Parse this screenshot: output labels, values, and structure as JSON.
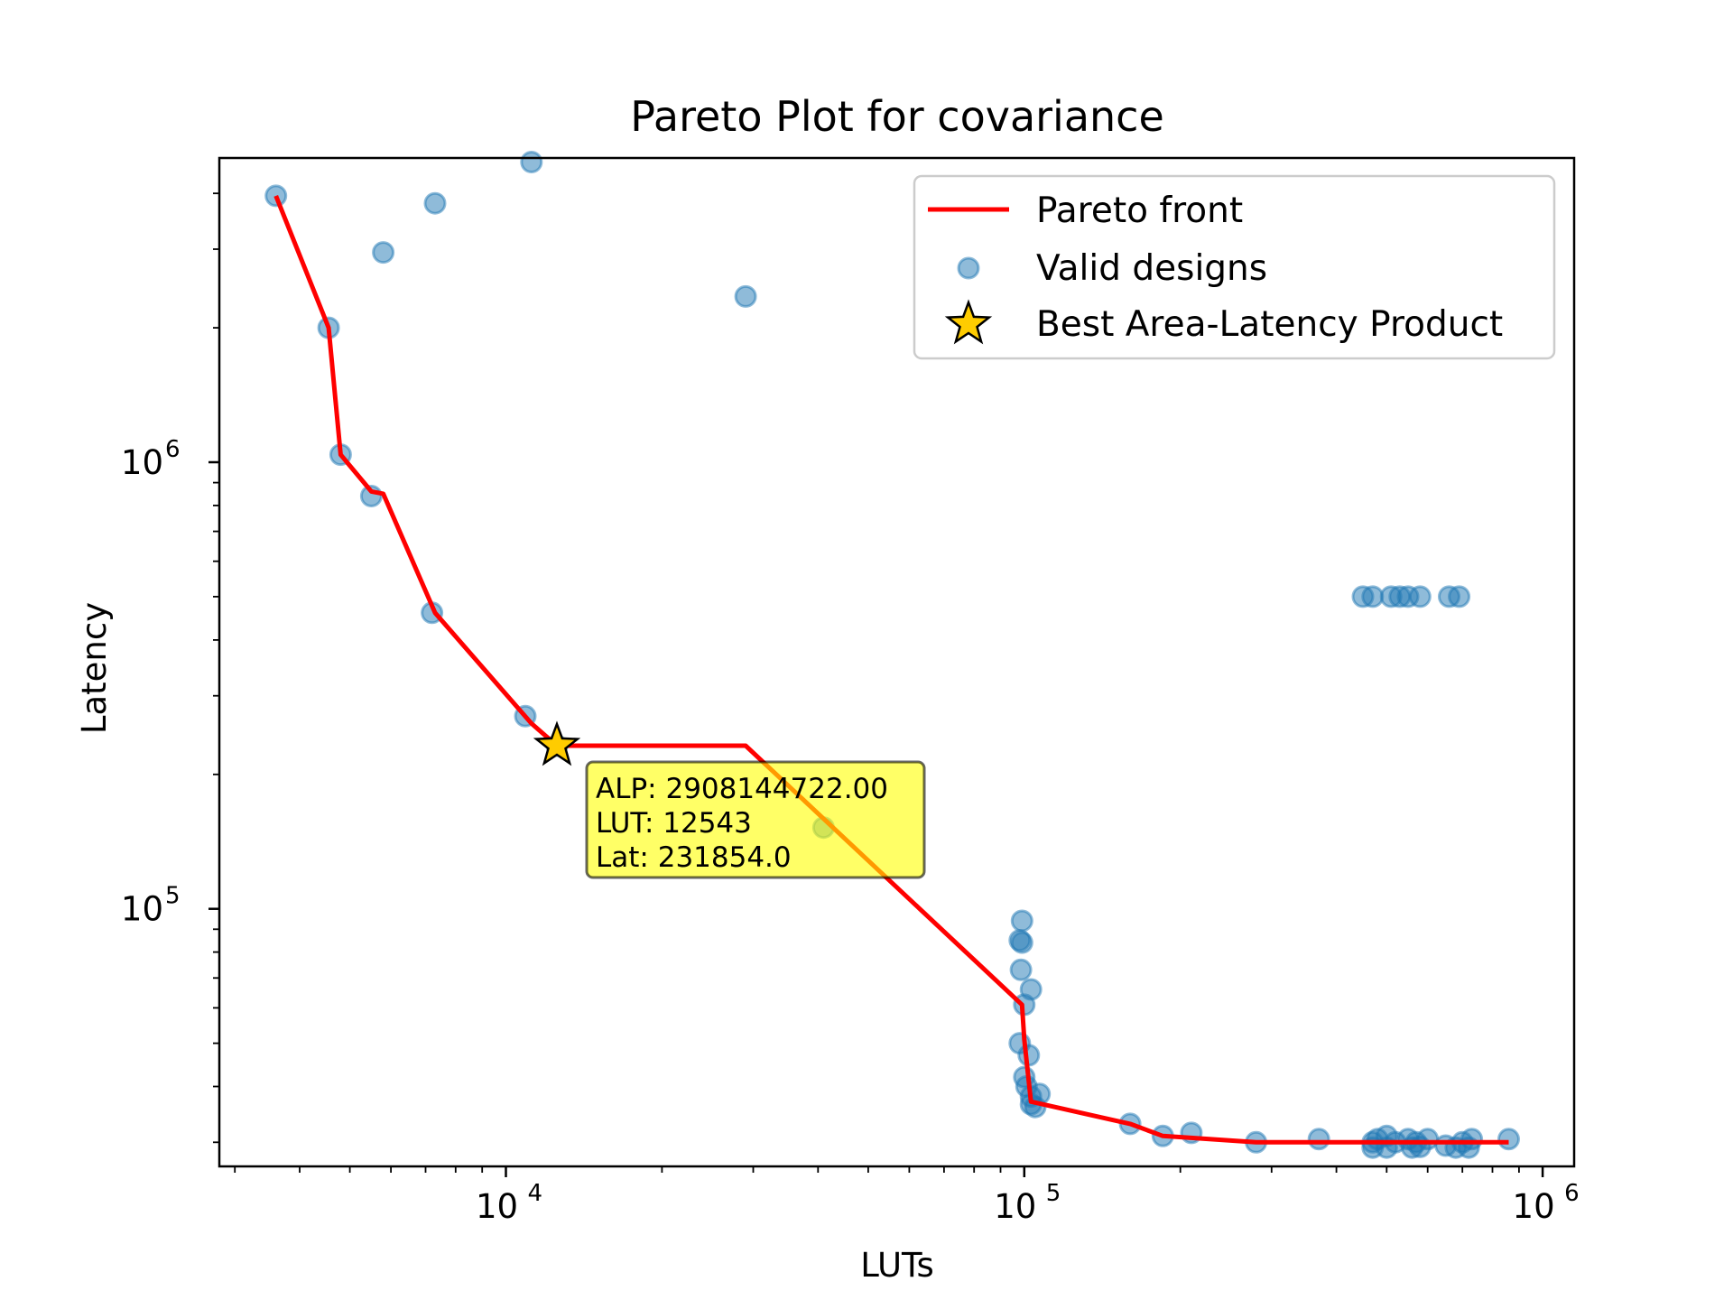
{
  "chart_data": {
    "type": "scatter",
    "title": "Pareto Plot for covariance",
    "xlabel": "LUTs",
    "ylabel": "Latency",
    "xscale": "log",
    "yscale": "log",
    "xlim": [
      2800,
      1150000
    ],
    "ylim": [
      26500,
      4800000
    ],
    "x_ticks": [
      {
        "value": 10000,
        "base": "10",
        "exp": "4"
      },
      {
        "value": 100000,
        "base": "10",
        "exp": "5"
      },
      {
        "value": 1000000,
        "base": "10",
        "exp": "6"
      }
    ],
    "y_ticks": [
      {
        "value": 100000,
        "base": "10",
        "exp": "5"
      },
      {
        "value": 1000000,
        "base": "10",
        "exp": "6"
      }
    ],
    "grid": false,
    "legend": {
      "position": "top-right",
      "entries": [
        {
          "label": "Pareto front",
          "kind": "line",
          "color": "#ff0000"
        },
        {
          "label": "Valid designs",
          "kind": "marker",
          "color": "#1f77b4"
        },
        {
          "label": "Best Area-Latency Product",
          "kind": "star",
          "color": "#ffcc00"
        }
      ]
    },
    "series": [
      {
        "name": "Valid designs",
        "kind": "scatter",
        "color": "#1f77b4",
        "opacity": 0.5,
        "points": [
          [
            3600,
            3950000
          ],
          [
            4550,
            2000000
          ],
          [
            4800,
            1040000
          ],
          [
            5500,
            840000
          ],
          [
            5800,
            2950000
          ],
          [
            7300,
            3800000
          ],
          [
            7200,
            460000
          ],
          [
            10900,
            270000
          ],
          [
            11200,
            4700000
          ],
          [
            12543,
            231854
          ],
          [
            29000,
            2350000
          ],
          [
            41000,
            152000
          ],
          [
            99000,
            94000
          ],
          [
            98000,
            85000
          ],
          [
            99000,
            84000
          ],
          [
            98500,
            73000
          ],
          [
            103000,
            66000
          ],
          [
            100000,
            61000
          ],
          [
            98000,
            50000
          ],
          [
            102000,
            47000
          ],
          [
            100000,
            42000
          ],
          [
            101000,
            40000
          ],
          [
            103000,
            38000
          ],
          [
            107000,
            38500
          ],
          [
            103000,
            36500
          ],
          [
            105000,
            36000
          ],
          [
            160000,
            33000
          ],
          [
            185000,
            31000
          ],
          [
            210000,
            31500
          ],
          [
            280000,
            30000
          ],
          [
            370000,
            30500
          ],
          [
            470000,
            30000
          ],
          [
            480000,
            30500
          ],
          [
            500000,
            31000
          ],
          [
            520000,
            30000
          ],
          [
            550000,
            30500
          ],
          [
            570000,
            30000
          ],
          [
            600000,
            30500
          ],
          [
            650000,
            29500
          ],
          [
            700000,
            30000
          ],
          [
            730000,
            30500
          ],
          [
            860000,
            30500
          ],
          [
            470000,
            29200
          ],
          [
            500000,
            29200
          ],
          [
            560000,
            29200
          ],
          [
            580000,
            29300
          ],
          [
            680000,
            29200
          ],
          [
            720000,
            29200
          ],
          [
            450000,
            500000
          ],
          [
            470000,
            500000
          ],
          [
            510000,
            500000
          ],
          [
            530000,
            500000
          ],
          [
            550000,
            500000
          ],
          [
            580000,
            500000
          ],
          [
            660000,
            500000
          ],
          [
            690000,
            500000
          ]
        ]
      },
      {
        "name": "Pareto front",
        "kind": "line",
        "color": "#ff0000",
        "points": [
          [
            3600,
            3950000
          ],
          [
            4550,
            2000000
          ],
          [
            4800,
            1040000
          ],
          [
            5500,
            860000
          ],
          [
            5800,
            850000
          ],
          [
            7300,
            460000
          ],
          [
            11200,
            260000
          ],
          [
            12543,
            231854
          ],
          [
            29000,
            231854
          ],
          [
            99000,
            61000
          ],
          [
            100000,
            51000
          ],
          [
            103000,
            37000
          ],
          [
            160000,
            33000
          ],
          [
            185000,
            31000
          ],
          [
            280000,
            30000
          ],
          [
            470000,
            30000
          ],
          [
            860000,
            30000
          ]
        ]
      }
    ],
    "best": {
      "label": "Best Area-Latency Product",
      "x": 12543,
      "y": 231854,
      "annotation": [
        "ALP: 2908144722.00",
        "LUT: 12543",
        "Lat: 231854.0"
      ]
    }
  }
}
